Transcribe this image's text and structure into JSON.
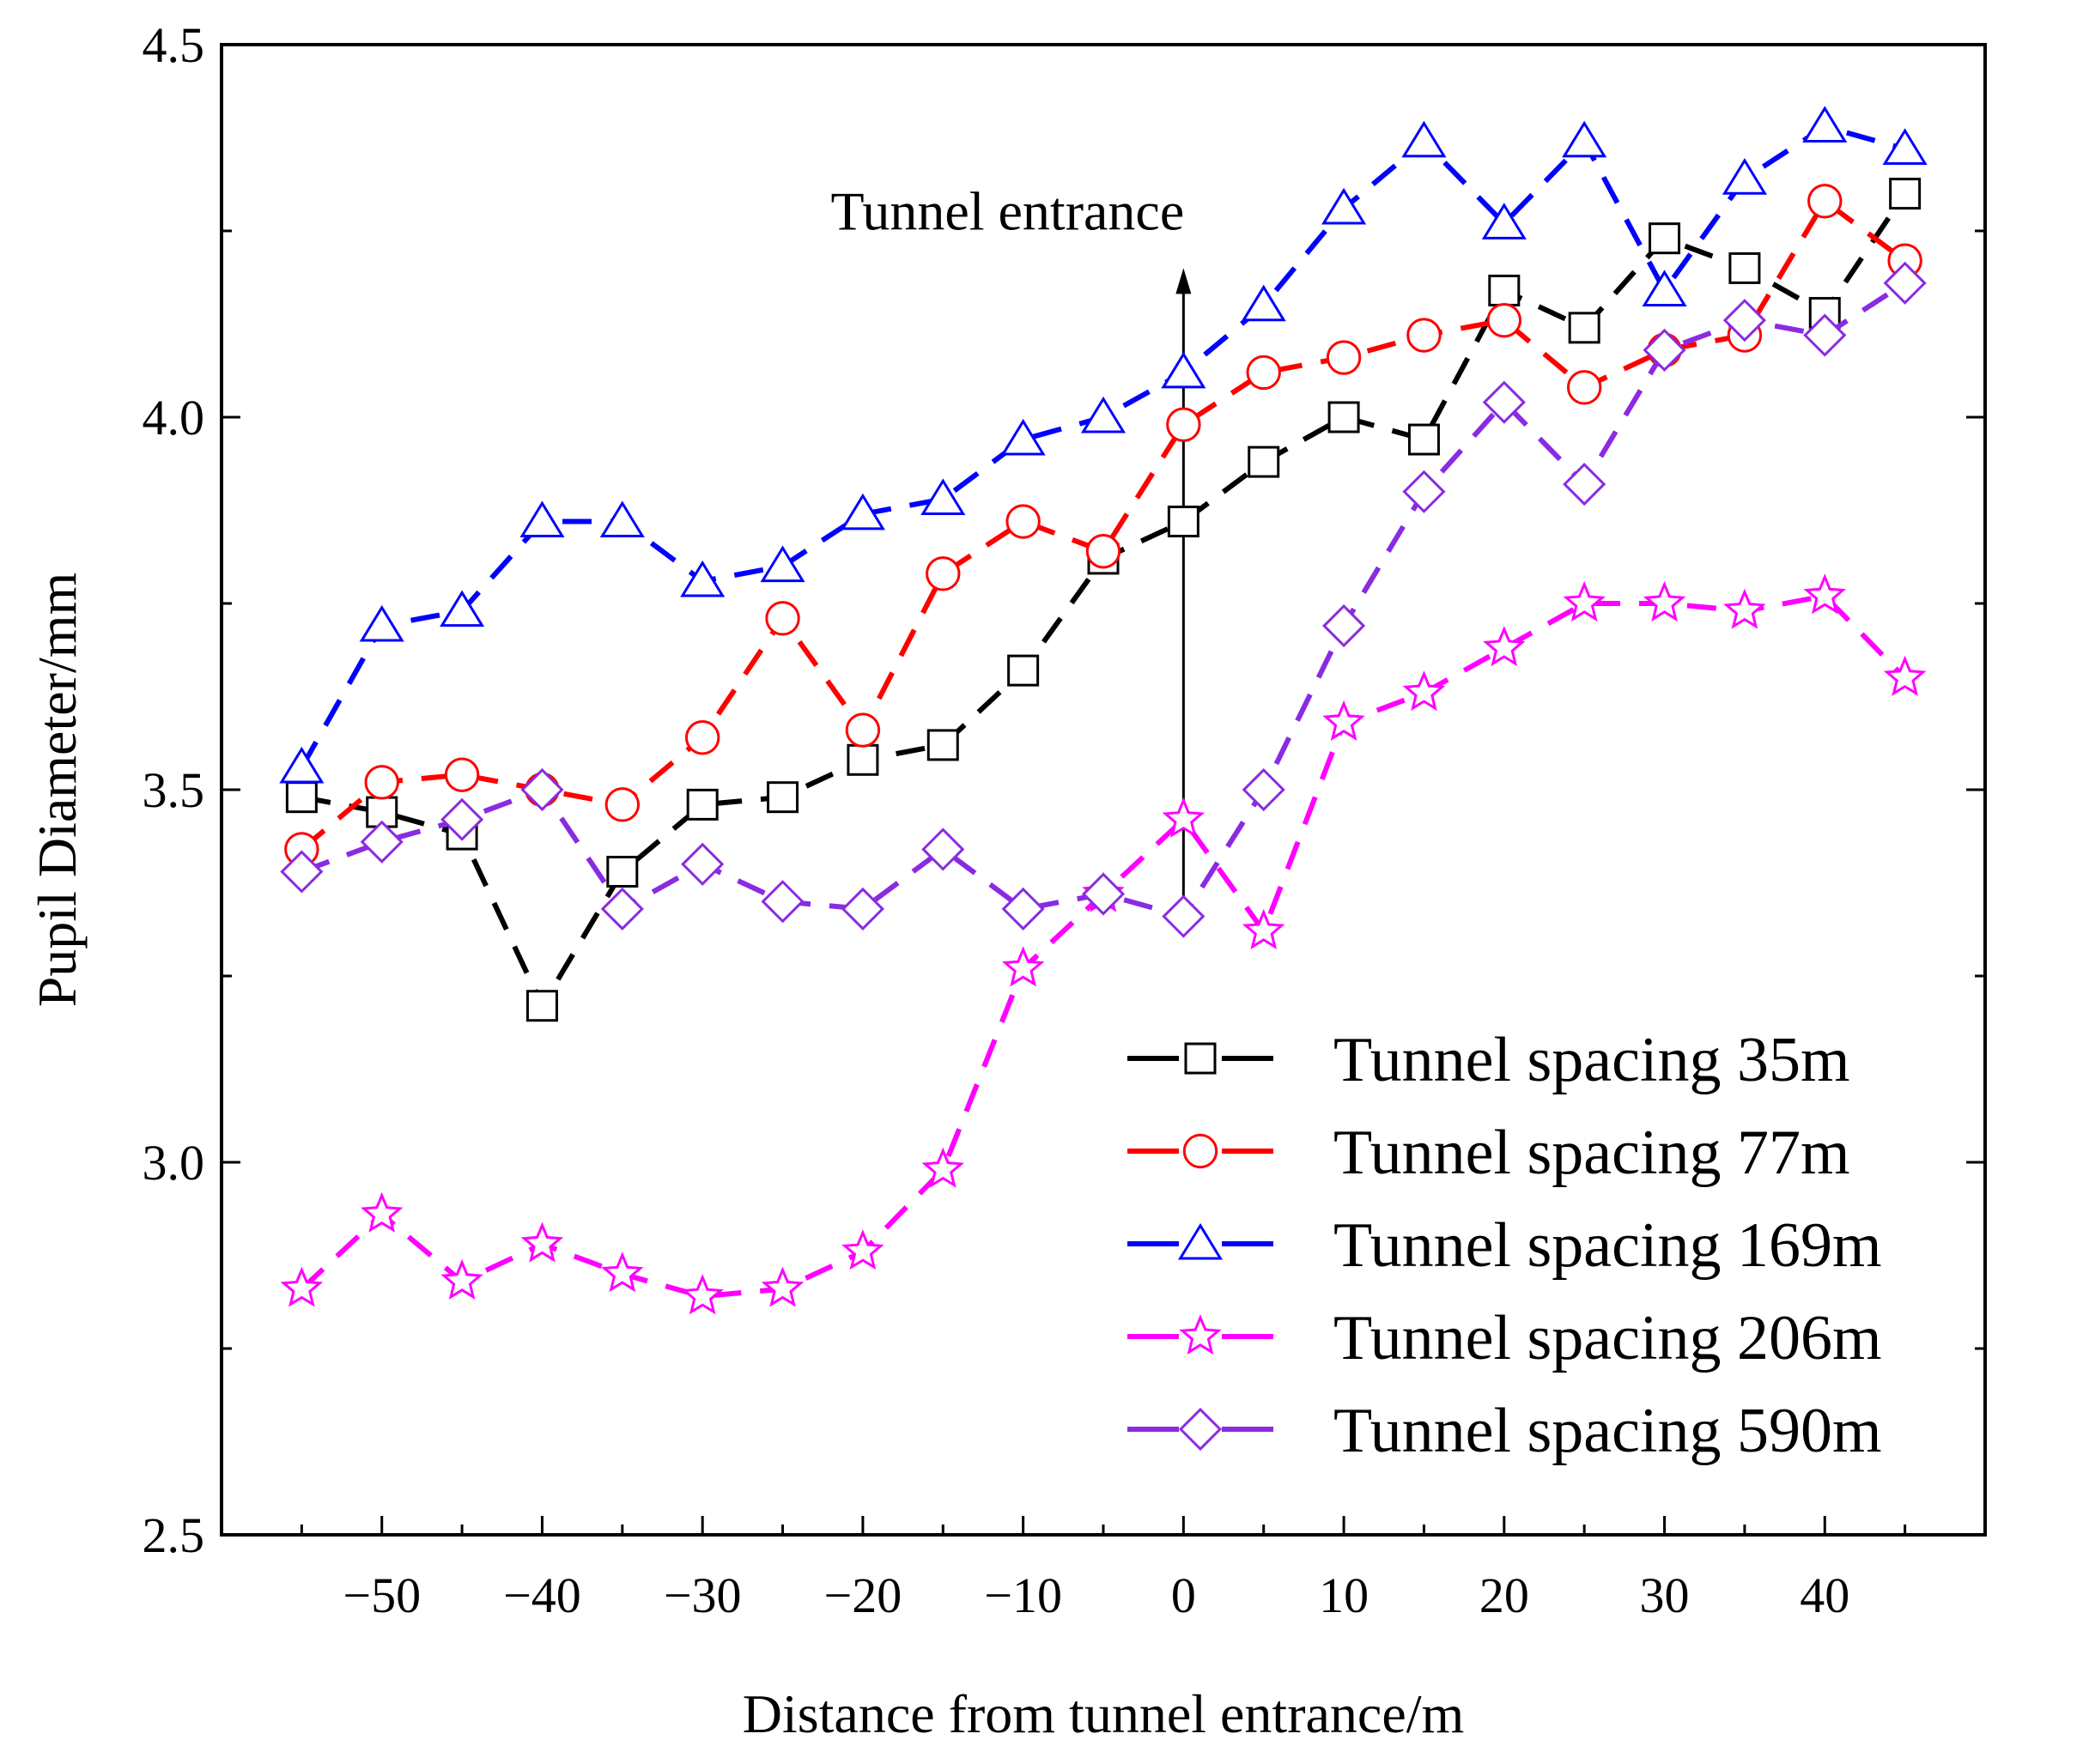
{
  "chart_data": {
    "type": "line",
    "title": "",
    "xlabel": "Distance from tunnel entrance/m",
    "ylabel": "Pupil Diameter/mm",
    "xlim": [
      -60,
      50
    ],
    "ylim": [
      2.5,
      4.5
    ],
    "x_ticks": [
      -50,
      -40,
      -30,
      -20,
      -10,
      0,
      10,
      20,
      30,
      40
    ],
    "x_tick_labels": [
      "−50",
      "−40",
      "−30",
      "−20",
      "−10",
      "0",
      "10",
      "20",
      "30",
      "40"
    ],
    "y_ticks": [
      2.5,
      3.0,
      3.5,
      4.0,
      4.5
    ],
    "y_tick_labels": [
      "2.5",
      "3.0",
      "3.5",
      "4.0",
      "4.5"
    ],
    "grid": false,
    "legend_position": "bottom-right",
    "x": [
      -55,
      -50,
      -45,
      -40,
      -35,
      -30,
      -25,
      -20,
      -15,
      -10,
      -5,
      0,
      5,
      10,
      15,
      20,
      25,
      30,
      35,
      40,
      45
    ],
    "series": [
      {
        "name": "Tunnel spacing 35m",
        "color": "#000000",
        "marker": "square",
        "values": [
          3.49,
          3.47,
          3.44,
          3.21,
          3.39,
          3.48,
          3.49,
          3.54,
          3.56,
          3.66,
          3.81,
          3.86,
          3.94,
          4.0,
          3.97,
          4.17,
          4.12,
          4.24,
          4.2,
          4.14,
          4.3
        ]
      },
      {
        "name": "Tunnel spacing 77m",
        "color": "#ff0000",
        "marker": "circle",
        "values": [
          3.42,
          3.51,
          3.52,
          3.5,
          3.48,
          3.57,
          3.73,
          3.58,
          3.79,
          3.86,
          3.82,
          3.99,
          4.06,
          4.08,
          4.11,
          4.13,
          4.04,
          4.09,
          4.11,
          4.29,
          4.21
        ]
      },
      {
        "name": "Tunnel spacing 169m",
        "color": "#0000ff",
        "marker": "triangle",
        "values": [
          3.53,
          3.72,
          3.74,
          3.86,
          3.86,
          3.78,
          3.8,
          3.87,
          3.89,
          3.97,
          4.0,
          4.06,
          4.15,
          4.28,
          4.37,
          4.26,
          4.37,
          4.17,
          4.32,
          4.39,
          4.36
        ]
      },
      {
        "name": "Tunnel spacing 206m",
        "color": "#ff00ff",
        "marker": "star",
        "values": [
          2.83,
          2.93,
          2.84,
          2.89,
          2.85,
          2.82,
          2.83,
          2.88,
          2.99,
          3.26,
          3.36,
          3.46,
          3.31,
          3.59,
          3.63,
          3.69,
          3.75,
          3.75,
          3.74,
          3.76,
          3.65
        ]
      },
      {
        "name": "Tunnel spacing 590m",
        "color": "#8a2be2",
        "marker": "diamond",
        "values": [
          3.39,
          3.43,
          3.46,
          3.5,
          3.34,
          3.4,
          3.35,
          3.34,
          3.42,
          3.34,
          3.36,
          3.33,
          3.5,
          3.72,
          3.9,
          4.02,
          3.91,
          4.09,
          4.13,
          4.11,
          4.18
        ]
      }
    ],
    "annotation": {
      "text": "Tunnel entrance",
      "x": 0,
      "y_from": 3.34,
      "y_to": 4.2
    }
  }
}
